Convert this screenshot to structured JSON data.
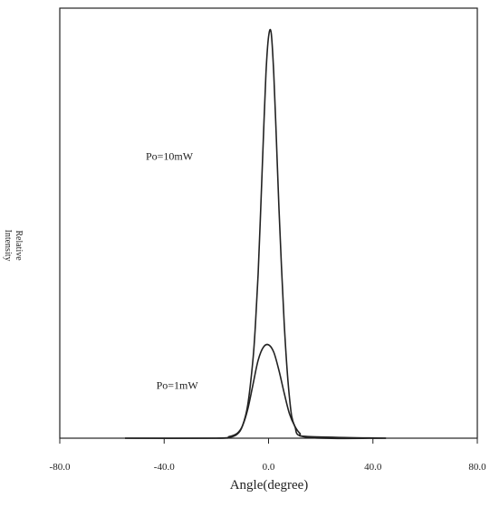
{
  "chart_data": {
    "type": "line",
    "title": "",
    "xlabel": "Angle(degree)",
    "ylabel": [
      "Relative",
      "Intensity"
    ],
    "xlim": [
      -80,
      80
    ],
    "ylim": [
      0,
      1.05
    ],
    "x_ticks": [
      -80,
      -40,
      0,
      40,
      80
    ],
    "x_tick_labels": [
      "-80.0",
      "-40.0",
      "0.0",
      "40.0",
      "80.0"
    ],
    "grid": false,
    "legend": "none",
    "series": [
      {
        "x": [
          -55,
          -20,
          -15,
          -12,
          -10,
          -8,
          -6,
          -5,
          -4,
          -3,
          -2,
          -1,
          0,
          1,
          2,
          3,
          4,
          6,
          8,
          10,
          15,
          45
        ],
        "y": [
          0,
          0,
          0.002,
          0.01,
          0.03,
          0.08,
          0.19,
          0.28,
          0.4,
          0.56,
          0.73,
          0.89,
          0.98,
          0.99,
          0.89,
          0.73,
          0.56,
          0.28,
          0.1,
          0.03,
          0.002,
          0
        ],
        "color": "#222222"
      },
      {
        "x": [
          -55,
          -20,
          -15,
          -12,
          -10,
          -8,
          -6,
          -4,
          -2,
          0,
          2,
          4,
          6,
          8,
          10,
          12,
          15,
          45
        ],
        "y": [
          0,
          0,
          0.004,
          0.012,
          0.03,
          0.07,
          0.13,
          0.19,
          0.222,
          0.228,
          0.21,
          0.165,
          0.11,
          0.06,
          0.03,
          0.012,
          0.004,
          0
        ],
        "color": "#222222"
      }
    ],
    "annotations": [
      {
        "text": "Po=10mW",
        "x": -38,
        "y": 0.68
      },
      {
        "text": "Po=1mW",
        "x": -35,
        "y": 0.12
      }
    ]
  }
}
